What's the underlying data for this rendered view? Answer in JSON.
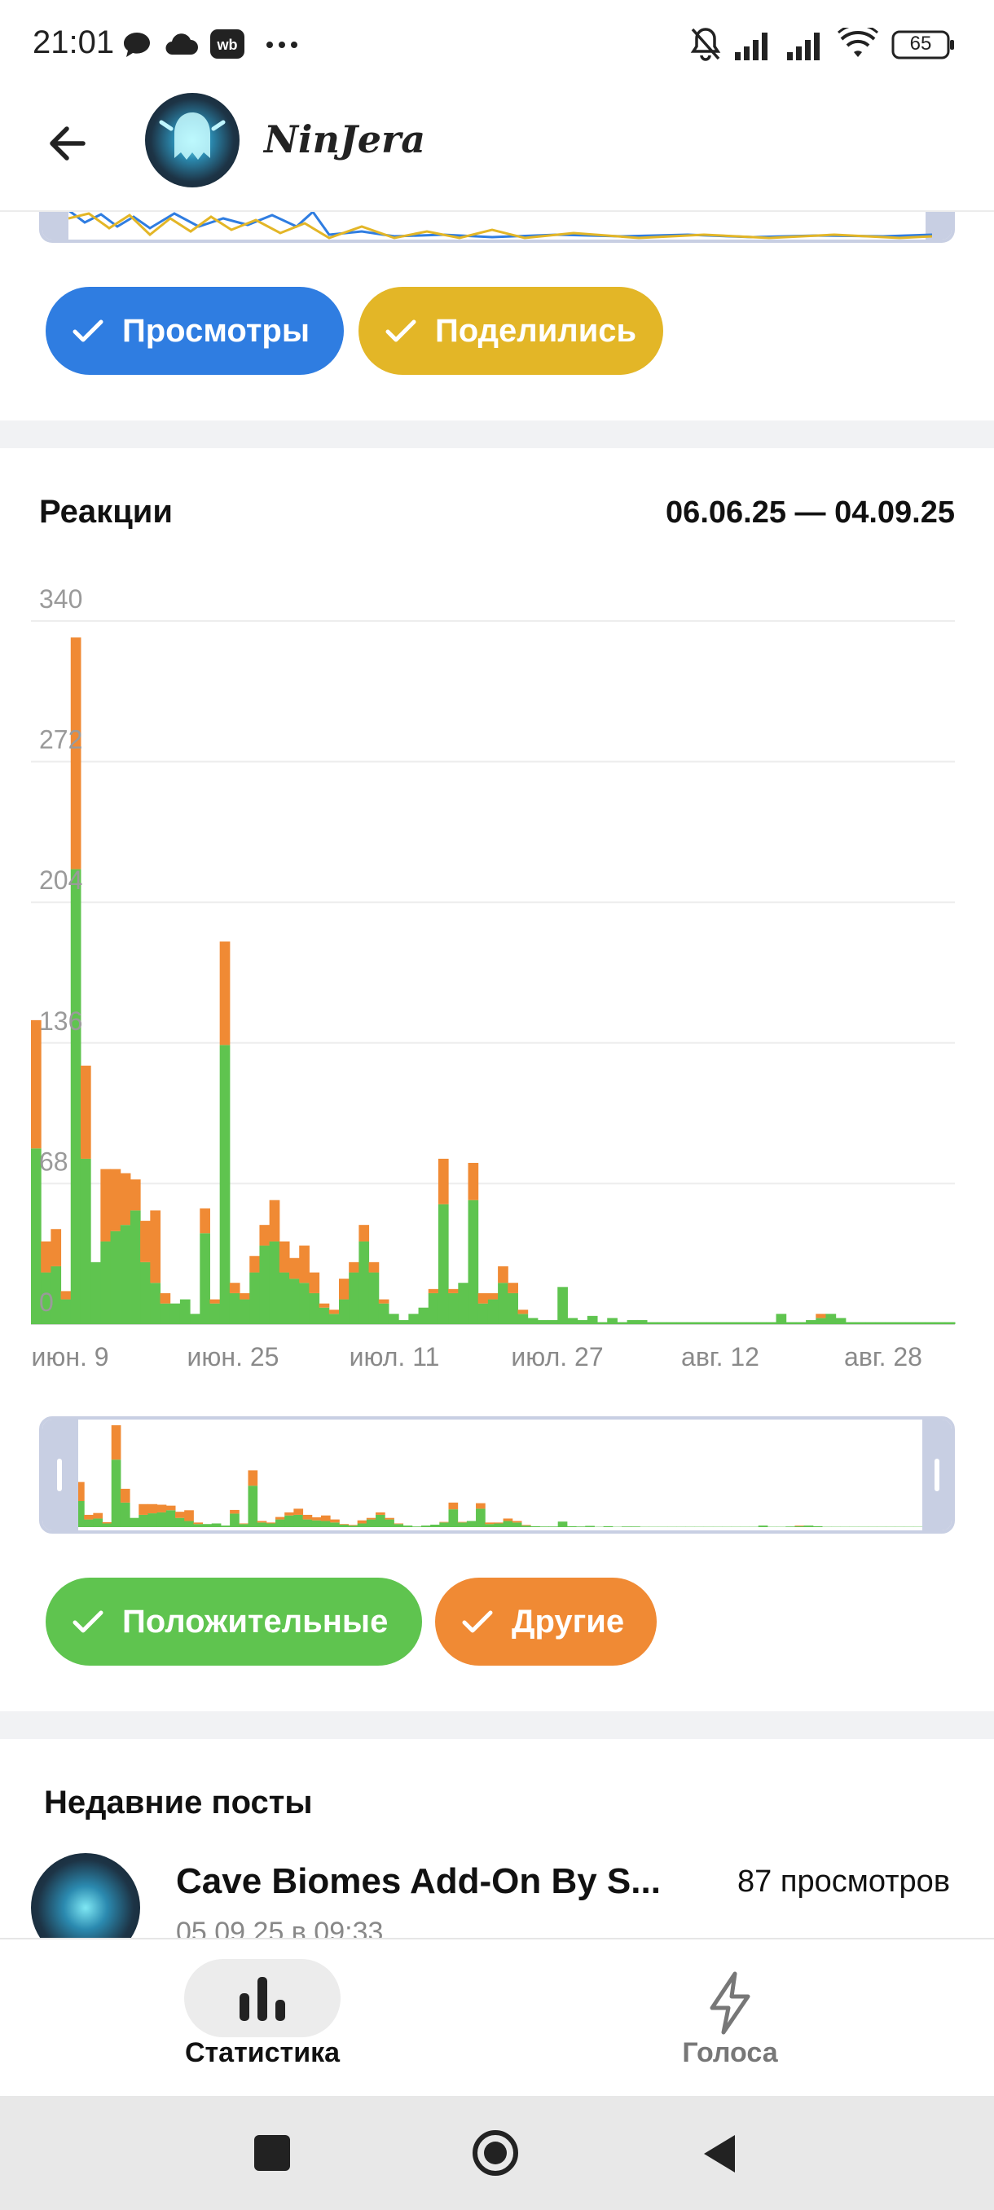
{
  "status_bar": {
    "time": "21:01",
    "battery": "65",
    "icons": [
      "chat-icon",
      "cloud-icon",
      "wb-icon",
      "more-dots-icon",
      "muted-bell-icon",
      "signal-icon",
      "signal-icon",
      "wifi-icon",
      "battery-icon"
    ]
  },
  "header": {
    "channel_name": "NinJera",
    "back_icon": "arrow-left-icon"
  },
  "views_section": {
    "toggles": [
      {
        "label": "Просмотры",
        "color": "#2f7de1",
        "checked": true
      },
      {
        "label": "Поделились",
        "color": "#e3b627",
        "checked": true
      }
    ]
  },
  "reactions_section": {
    "title": "Реакции",
    "date_range": "06.06.25 — 04.09.25",
    "toggles": [
      {
        "label": "Положительные",
        "color": "#5fc44f",
        "checked": true
      },
      {
        "label": "Другие",
        "color": "#f08a34",
        "checked": true
      }
    ]
  },
  "chart_data": {
    "type": "bar",
    "stacked": true,
    "yticks": [
      "340",
      "272",
      "204",
      "136",
      "68",
      "0"
    ],
    "ylim": [
      0,
      340
    ],
    "x_tick_labels": [
      "июн. 9",
      "июн. 25",
      "июл. 11",
      "июл. 27",
      "авг. 12",
      "авг. 28"
    ],
    "series": [
      {
        "name": "Положительные",
        "color": "#5fc44f",
        "values": [
          85,
          25,
          28,
          12,
          220,
          80,
          30,
          40,
          45,
          48,
          55,
          30,
          20,
          10,
          10,
          12,
          5,
          44,
          10,
          135,
          15,
          12,
          25,
          38,
          40,
          25,
          22,
          20,
          15,
          8,
          5,
          12,
          25,
          40,
          25,
          10,
          5,
          2,
          5,
          8,
          15,
          58,
          15,
          20,
          60,
          10,
          12,
          20,
          15,
          5,
          3,
          2,
          2,
          18,
          3,
          2,
          4,
          1,
          3,
          1,
          2,
          2,
          1,
          1,
          1,
          1,
          1,
          1,
          1,
          1,
          1,
          1,
          1,
          1,
          1,
          5,
          1,
          1,
          2,
          3,
          5,
          3,
          1,
          1,
          1,
          1,
          1,
          1,
          1,
          1,
          1,
          1,
          1
        ]
      },
      {
        "name": "Другие",
        "color": "#f08a34",
        "values": [
          62,
          15,
          18,
          4,
          112,
          45,
          0,
          35,
          30,
          25,
          15,
          20,
          35,
          5,
          0,
          0,
          0,
          12,
          2,
          50,
          5,
          3,
          8,
          10,
          20,
          15,
          10,
          18,
          10,
          2,
          2,
          10,
          5,
          8,
          5,
          2,
          0,
          0,
          0,
          0,
          2,
          22,
          2,
          0,
          18,
          5,
          3,
          8,
          5,
          2,
          0,
          0,
          0,
          0,
          0,
          0,
          0,
          0,
          0,
          0,
          0,
          0,
          0,
          0,
          0,
          0,
          0,
          0,
          0,
          0,
          0,
          0,
          0,
          0,
          0,
          0,
          0,
          0,
          0,
          2,
          0,
          0,
          0,
          0,
          0,
          0,
          0,
          0,
          0,
          0,
          0,
          0,
          0
        ]
      }
    ]
  },
  "recent_posts": {
    "title": "Недавние посты",
    "items": [
      {
        "title": "Cave Biomes Add-On By S...",
        "views": "87 просмотров",
        "date": "05.09.25 в 09:33"
      }
    ]
  },
  "bottom_nav": {
    "items": [
      {
        "label": "Статистика",
        "icon": "bar-chart-icon",
        "active": true
      },
      {
        "label": "Голоса",
        "icon": "lightning-icon",
        "active": false
      }
    ]
  },
  "system_nav": {
    "icons": [
      "recents-square-icon",
      "home-circle-icon",
      "back-triangle-icon"
    ]
  }
}
